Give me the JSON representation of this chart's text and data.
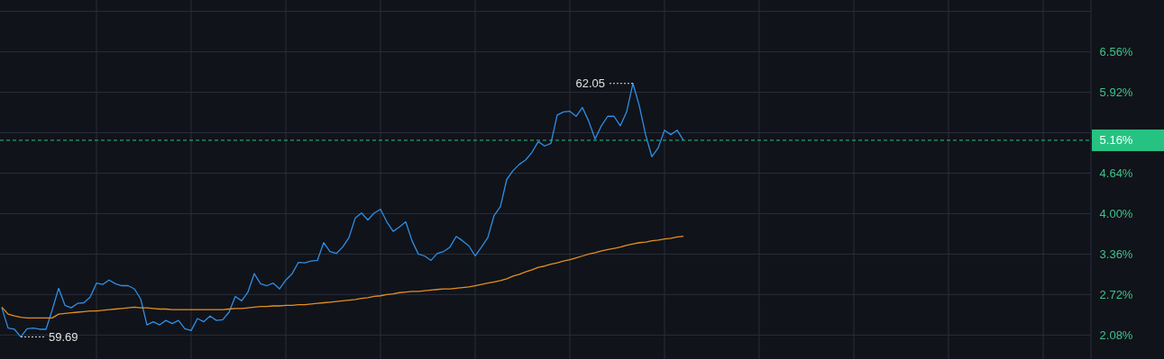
{
  "chart_data": {
    "type": "line",
    "categories": [
      null,
      null,
      null,
      null,
      null,
      null,
      null,
      null,
      null,
      null,
      null,
      null,
      null,
      null,
      null,
      null,
      null,
      null,
      null,
      null,
      null,
      null,
      null,
      null,
      null,
      null,
      null,
      null,
      null,
      null,
      null,
      null,
      null,
      null,
      null,
      null,
      null,
      null,
      null,
      null,
      null,
      null,
      null,
      null,
      null,
      null,
      null,
      null,
      null,
      null,
      null,
      null,
      null,
      null,
      null,
      null,
      null,
      null,
      null,
      null,
      null,
      null,
      null,
      null,
      null,
      null,
      null,
      null,
      null,
      null,
      null,
      null,
      null,
      null,
      null,
      null,
      null,
      null,
      null,
      null,
      null,
      null,
      null,
      null,
      null,
      null,
      null,
      null,
      null,
      null,
      null,
      null,
      null,
      null,
      null,
      null,
      null,
      null,
      null,
      null,
      null,
      null,
      null,
      null,
      null,
      null,
      null,
      null,
      null,
      null,
      null,
      null,
      null,
      null,
      null,
      null,
      null,
      null,
      null,
      null,
      null,
      null,
      null,
      null,
      null,
      null,
      null,
      null,
      null,
      null,
      null,
      null,
      null,
      null,
      null,
      null,
      null,
      null,
      null,
      null,
      null,
      null,
      null,
      null,
      null,
      null,
      null,
      null,
      null,
      null,
      null,
      null,
      null,
      null,
      null,
      null,
      null,
      null,
      null,
      null,
      null,
      null,
      null,
      null,
      null,
      null,
      null,
      null,
      null,
      null,
      null,
      null,
      null
    ],
    "series": [
      {
        "color": "#2f8ee5",
        "values": [
          2.51,
          2.19,
          2.17,
          2.05,
          2.18,
          2.19,
          2.17,
          2.17,
          2.48,
          2.82,
          2.55,
          2.51,
          2.58,
          2.59,
          2.68,
          2.9,
          2.88,
          2.95,
          2.89,
          2.86,
          2.86,
          2.81,
          2.65,
          2.24,
          2.29,
          2.24,
          2.31,
          2.26,
          2.31,
          2.18,
          2.15,
          2.34,
          2.29,
          2.38,
          2.31,
          2.32,
          2.44,
          2.69,
          2.62,
          2.76,
          3.05,
          2.89,
          2.86,
          2.9,
          2.81,
          2.95,
          3.05,
          3.23,
          3.22,
          3.25,
          3.26,
          3.54,
          3.4,
          3.37,
          3.47,
          3.62,
          3.93,
          4.01,
          3.9,
          4.01,
          4.07,
          3.87,
          3.72,
          3.79,
          3.87,
          3.57,
          3.36,
          3.33,
          3.26,
          3.37,
          3.4,
          3.47,
          3.64,
          3.57,
          3.49,
          3.33,
          3.47,
          3.62,
          3.97,
          4.11,
          4.54,
          4.68,
          4.78,
          4.85,
          4.97,
          5.14,
          5.07,
          5.11,
          5.56,
          5.61,
          5.62,
          5.54,
          5.68,
          5.46,
          5.18,
          5.39,
          5.54,
          5.54,
          5.39,
          5.61,
          6.06,
          5.71,
          5.25,
          4.9,
          5.04,
          5.32,
          5.25,
          5.32,
          5.16,
          null,
          null,
          null,
          null,
          null,
          null,
          null,
          null,
          null,
          null,
          null,
          null,
          null,
          null,
          null,
          null,
          null,
          null,
          null,
          null,
          null,
          null,
          null,
          null,
          null,
          null,
          null,
          null,
          null,
          null,
          null,
          null,
          null,
          null,
          null,
          null,
          null,
          null,
          null,
          null,
          null,
          null,
          null,
          null,
          null,
          null,
          null,
          null,
          null,
          null,
          null,
          null,
          null,
          null,
          null,
          null,
          null,
          null,
          null,
          null,
          null,
          null,
          null,
          null
        ]
      },
      {
        "color": "#e3901e",
        "values": [
          2.52,
          2.41,
          2.38,
          2.36,
          2.35,
          2.35,
          2.35,
          2.35,
          2.35,
          2.41,
          2.42,
          2.43,
          2.44,
          2.45,
          2.46,
          2.46,
          2.47,
          2.48,
          2.49,
          2.5,
          2.51,
          2.52,
          2.51,
          2.51,
          2.5,
          2.49,
          2.49,
          2.48,
          2.48,
          2.48,
          2.48,
          2.48,
          2.48,
          2.48,
          2.48,
          2.48,
          2.49,
          2.5,
          2.5,
          2.51,
          2.52,
          2.53,
          2.53,
          2.54,
          2.54,
          2.55,
          2.55,
          2.56,
          2.56,
          2.57,
          2.58,
          2.59,
          2.6,
          2.61,
          2.62,
          2.63,
          2.64,
          2.66,
          2.67,
          2.69,
          2.7,
          2.72,
          2.73,
          2.75,
          2.76,
          2.77,
          2.77,
          2.78,
          2.79,
          2.8,
          2.81,
          2.81,
          2.82,
          2.83,
          2.84,
          2.86,
          2.88,
          2.9,
          2.92,
          2.94,
          2.97,
          3.01,
          3.04,
          3.08,
          3.11,
          3.15,
          3.17,
          3.2,
          3.22,
          3.25,
          3.27,
          3.3,
          3.33,
          3.36,
          3.38,
          3.41,
          3.43,
          3.45,
          3.47,
          3.5,
          3.52,
          3.54,
          3.55,
          3.57,
          3.58,
          3.6,
          3.61,
          3.63,
          3.64,
          null,
          null,
          null,
          null,
          null,
          null,
          null,
          null,
          null,
          null,
          null,
          null,
          null,
          null,
          null,
          null,
          null,
          null,
          null,
          null,
          null,
          null,
          null,
          null,
          null,
          null,
          null,
          null,
          null,
          null,
          null,
          null,
          null,
          null,
          null,
          null,
          null,
          null,
          null,
          null,
          null,
          null,
          null,
          null,
          null,
          null,
          null,
          null,
          null,
          null,
          null,
          null,
          null,
          null,
          null,
          null,
          null,
          null,
          null,
          null,
          null,
          null,
          null,
          null
        ]
      }
    ],
    "ylim": [
      1.7,
      7.38
    ],
    "yticks": [
      {
        "value": 7.2,
        "label": null
      },
      {
        "value": 6.56,
        "label": "6.56%"
      },
      {
        "value": 5.92,
        "label": "5.92%"
      },
      {
        "value": 5.28,
        "label": null
      },
      {
        "value": 4.64,
        "label": "4.64%"
      },
      {
        "value": 4.0,
        "label": "4.00%"
      },
      {
        "value": 3.36,
        "label": "3.36%"
      },
      {
        "value": 2.72,
        "label": "2.72%"
      },
      {
        "value": 2.08,
        "label": "2.08%"
      }
    ],
    "ref_lines": [
      {
        "axis": "y",
        "value": 5.16,
        "label": "5.16%",
        "color": "#26c281",
        "line_style": "dashed"
      }
    ],
    "annotations": [
      "62.05",
      "59.69"
    ],
    "grid": true,
    "tick_labels": "y",
    "line_style": "solid",
    "marker": "none"
  }
}
